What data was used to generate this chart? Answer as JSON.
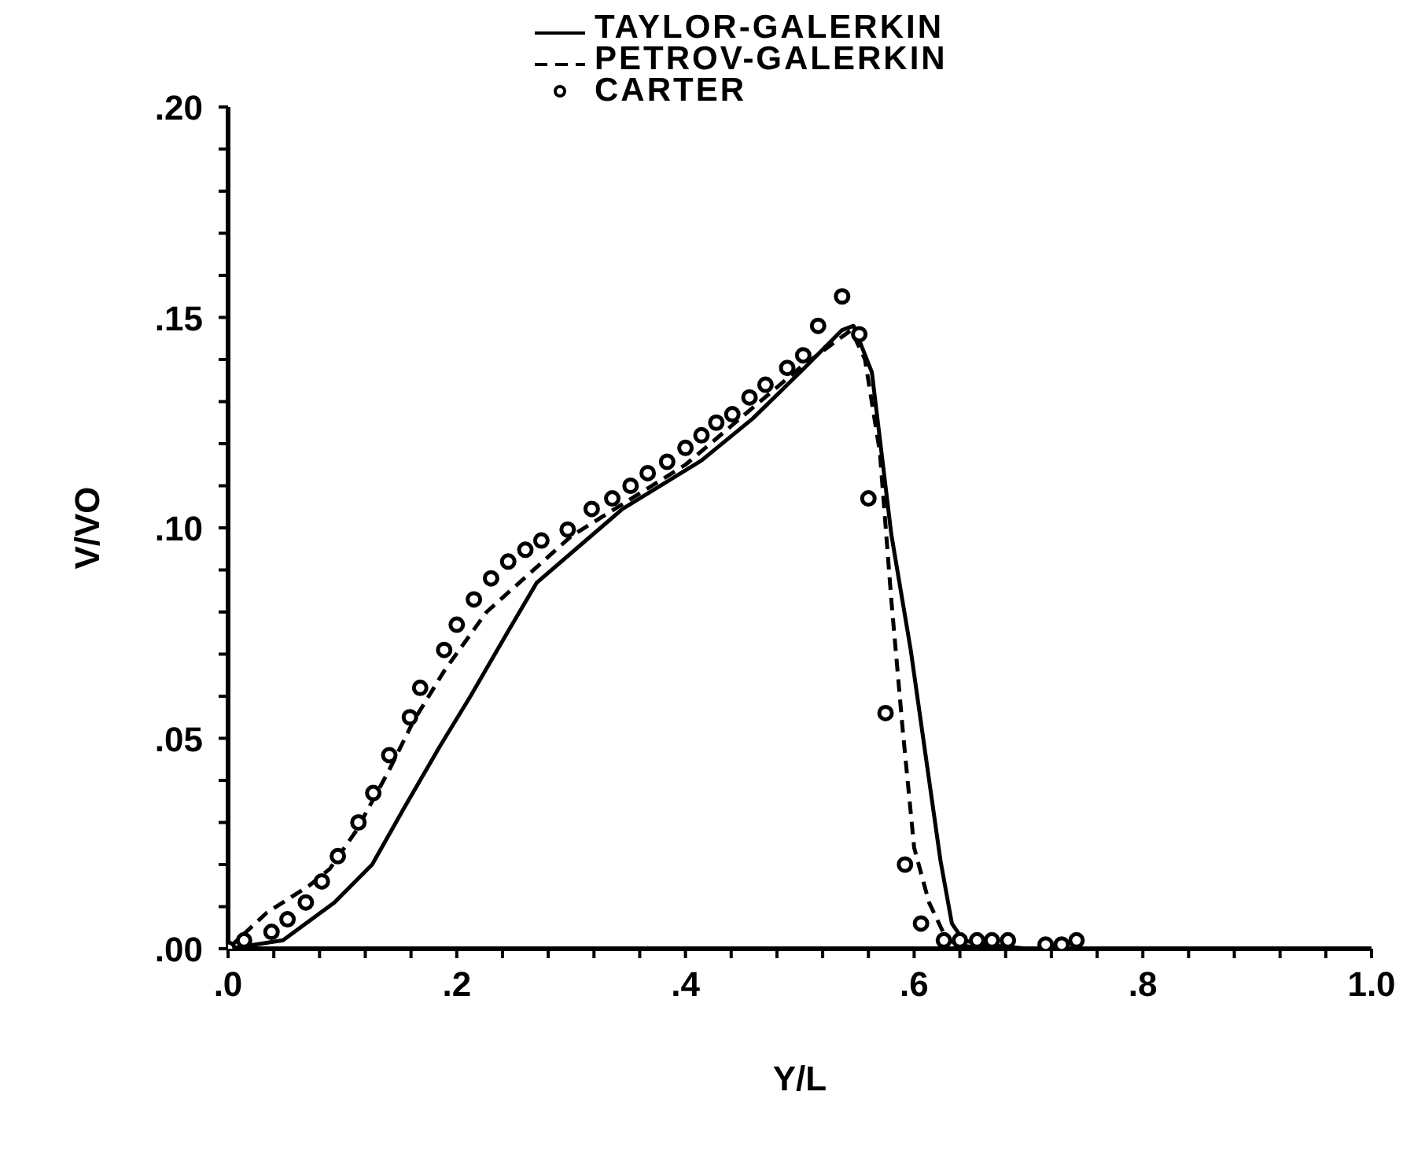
{
  "chart_data": {
    "type": "line",
    "xlabel": "Y/L",
    "ylabel": "V/VO",
    "xlim": [
      0,
      1.0
    ],
    "ylim": [
      0,
      0.2
    ],
    "xticks": [
      {
        "value": 0,
        "label": ".0"
      },
      {
        "value": 0.04,
        "label": null
      },
      {
        "value": 0.08,
        "label": null
      },
      {
        "value": 0.12,
        "label": null
      },
      {
        "value": 0.16,
        "label": null
      },
      {
        "value": 0.2,
        "label": ".2"
      },
      {
        "value": 0.24,
        "label": null
      },
      {
        "value": 0.28,
        "label": null
      },
      {
        "value": 0.32,
        "label": null
      },
      {
        "value": 0.36,
        "label": null
      },
      {
        "value": 0.4,
        "label": ".4"
      },
      {
        "value": 0.44,
        "label": null
      },
      {
        "value": 0.48,
        "label": null
      },
      {
        "value": 0.52,
        "label": null
      },
      {
        "value": 0.56,
        "label": null
      },
      {
        "value": 0.6,
        "label": ".6"
      },
      {
        "value": 0.64,
        "label": null
      },
      {
        "value": 0.68,
        "label": null
      },
      {
        "value": 0.72,
        "label": null
      },
      {
        "value": 0.76,
        "label": null
      },
      {
        "value": 0.8,
        "label": ".8"
      },
      {
        "value": 0.84,
        "label": null
      },
      {
        "value": 0.88,
        "label": null
      },
      {
        "value": 0.92,
        "label": null
      },
      {
        "value": 0.96,
        "label": null
      },
      {
        "value": 1.0,
        "label": "1.0"
      }
    ],
    "yticks": [
      {
        "value": 0,
        "label": ".00"
      },
      {
        "value": 0.01,
        "label": null
      },
      {
        "value": 0.02,
        "label": null
      },
      {
        "value": 0.03,
        "label": null
      },
      {
        "value": 0.04,
        "label": null
      },
      {
        "value": 0.05,
        "label": ".05"
      },
      {
        "value": 0.06,
        "label": null
      },
      {
        "value": 0.07,
        "label": null
      },
      {
        "value": 0.08,
        "label": null
      },
      {
        "value": 0.09,
        "label": null
      },
      {
        "value": 0.1,
        "label": ".10"
      },
      {
        "value": 0.11,
        "label": null
      },
      {
        "value": 0.12,
        "label": null
      },
      {
        "value": 0.13,
        "label": null
      },
      {
        "value": 0.14,
        "label": null
      },
      {
        "value": 0.15,
        "label": ".15"
      },
      {
        "value": 0.16,
        "label": null
      },
      {
        "value": 0.17,
        "label": null
      },
      {
        "value": 0.18,
        "label": null
      },
      {
        "value": 0.19,
        "label": null
      },
      {
        "value": 0.2,
        "label": ".20"
      }
    ],
    "legend": "top",
    "series": [
      {
        "name": "TAYLOR-GALERKIN",
        "color": "#000000",
        "line_style": "solid",
        "marker": "none",
        "x": [
          0,
          0.048,
          0.093,
          0.126,
          0.153,
          0.185,
          0.212,
          0.244,
          0.27,
          0.345,
          0.414,
          0.459,
          0.504,
          0.537,
          0.547,
          0.563,
          0.58,
          0.597,
          0.61,
          0.623,
          0.633,
          0.643,
          0.66,
          0.7,
          1.0
        ],
        "values": [
          0,
          0.002,
          0.011,
          0.02,
          0.033,
          0.048,
          0.06,
          0.075,
          0.087,
          0.1045,
          0.116,
          0.126,
          0.138,
          0.147,
          0.148,
          0.137,
          0.0985,
          0.071,
          0.046,
          0.021,
          0.006,
          0.002,
          0.001,
          0,
          0
        ]
      },
      {
        "name": "PETROV-GALERKIN",
        "color": "#000000",
        "line_style": "dashed",
        "marker": "none",
        "x": [
          0,
          0.034,
          0.071,
          0.089,
          0.112,
          0.14,
          0.162,
          0.189,
          0.226,
          0.3,
          0.4,
          0.5,
          0.545,
          0.557,
          0.57,
          0.58,
          0.59,
          0.6,
          0.613,
          0.627,
          0.637,
          0.66,
          0.7
        ],
        "values": [
          0,
          0.0086,
          0.015,
          0.019,
          0.028,
          0.042,
          0.054,
          0.066,
          0.08,
          0.098,
          0.115,
          0.138,
          0.147,
          0.14,
          0.118,
          0.083,
          0.052,
          0.024,
          0.011,
          0.003,
          0.001,
          0,
          0
        ]
      },
      {
        "name": "CARTER",
        "type": "scatter",
        "color": "#000000",
        "marker": "circle",
        "x": [
          0,
          0.014,
          0.038,
          0.052,
          0.068,
          0.082,
          0.096,
          0.114,
          0.127,
          0.141,
          0.159,
          0.168,
          0.189,
          0.2,
          0.215,
          0.23,
          0.245,
          0.26,
          0.274,
          0.297,
          0.318,
          0.336,
          0.352,
          0.367,
          0.384,
          0.4,
          0.414,
          0.427,
          0.441,
          0.456,
          0.47,
          0.489,
          0.503,
          0.516,
          0.537,
          0.552,
          0.56,
          0.575,
          0.592,
          0.606,
          0.626,
          0.64,
          0.655,
          0.668,
          0.682,
          0.715,
          0.729,
          0.742
        ],
        "values": [
          0,
          0.002,
          0.004,
          0.007,
          0.011,
          0.016,
          0.022,
          0.03,
          0.037,
          0.046,
          0.055,
          0.062,
          0.071,
          0.077,
          0.083,
          0.088,
          0.092,
          0.0948,
          0.097,
          0.0996,
          0.1045,
          0.107,
          0.11,
          0.113,
          0.1157,
          0.119,
          0.122,
          0.125,
          0.127,
          0.131,
          0.134,
          0.138,
          0.141,
          0.148,
          0.155,
          0.146,
          0.107,
          0.056,
          0.02,
          0.006,
          0.002,
          0.002,
          0.002,
          0.002,
          0.002,
          0.001,
          0.001,
          0.002
        ]
      }
    ]
  }
}
